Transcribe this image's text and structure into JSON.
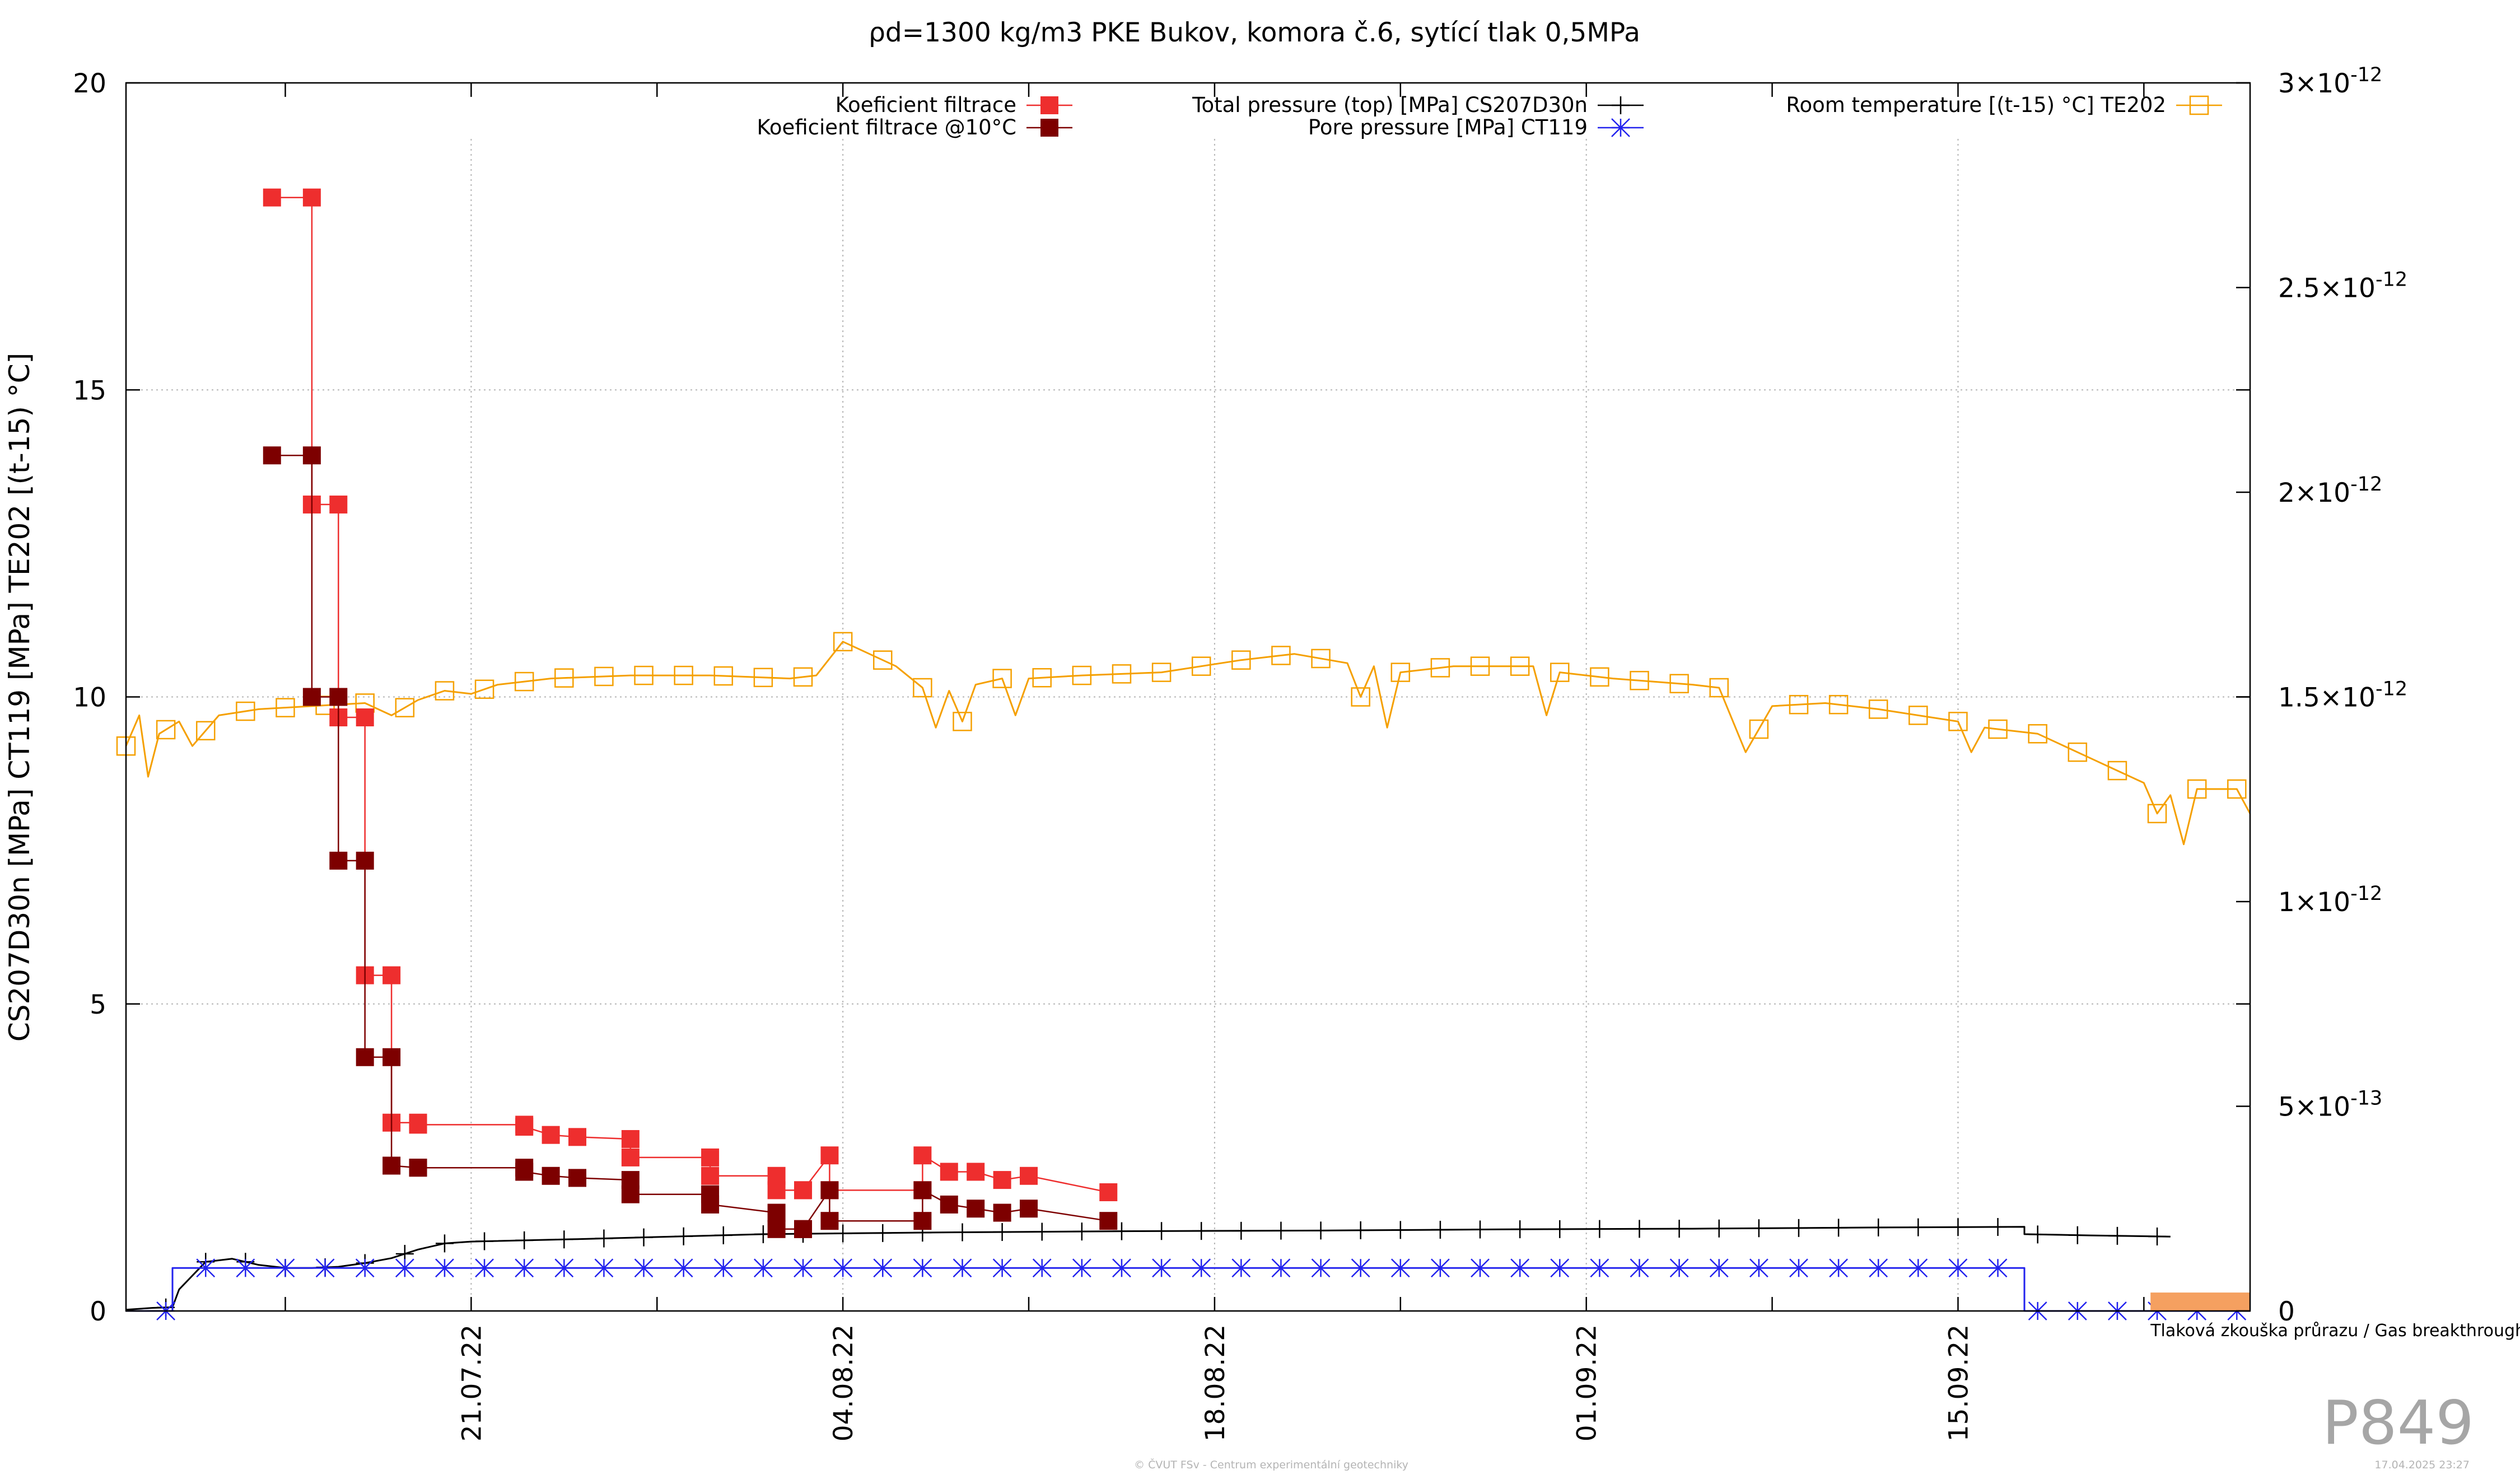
{
  "chart_data": {
    "type": "line",
    "title": "ρd=1300 kg/m3 PKE Bukov, komora č.6, sytící tlak 0,5MPa",
    "ylabel": "CS207D30n [MPa] CT119 [MPa] TE202 [(t-15) °C]",
    "ylim": [
      0,
      20
    ],
    "y_ticks": [
      "0",
      "5",
      "10",
      "15",
      "20"
    ],
    "y2lim": [
      0,
      3e-12
    ],
    "y2_ticks": [
      {
        "value": 0,
        "mant": "0",
        "exp": ""
      },
      {
        "value": 5e-13,
        "mant": "5×10",
        "exp": "-13"
      },
      {
        "value": 1e-12,
        "mant": "1×10",
        "exp": "-12"
      },
      {
        "value": 1.5e-12,
        "mant": "1.5×10",
        "exp": "-12"
      },
      {
        "value": 2e-12,
        "mant": "2×10",
        "exp": "-12"
      },
      {
        "value": 2.5e-12,
        "mant": "2.5×10",
        "exp": "-12"
      },
      {
        "value": 3e-12,
        "mant": "3×10",
        "exp": "-12"
      }
    ],
    "xlim": [
      "2022-07-08",
      "2022-09-26"
    ],
    "x_ticks": [
      "21.07.22",
      "04.08.22",
      "18.08.22",
      "01.09.22",
      "15.09.22"
    ],
    "x_tick_dates": [
      "2022-07-21",
      "2022-08-04",
      "2022-08-18",
      "2022-09-01",
      "2022-09-15"
    ],
    "grid": true,
    "legend_position": "top",
    "series": [
      {
        "name": "Koeficient filtrace",
        "axis": "y2",
        "color": "#ee2e2e",
        "marker": "filled-square",
        "points": [
          [
            "2022-07-13T12:00",
            2.72e-12
          ],
          [
            "2022-07-15T00:00",
            2.72e-12
          ],
          [
            "2022-07-15T00:00",
            1.97e-12
          ],
          [
            "2022-07-16T00:00",
            1.97e-12
          ],
          [
            "2022-07-16T00:00",
            1.45e-12
          ],
          [
            "2022-07-17T00:00",
            1.45e-12
          ],
          [
            "2022-07-17T00:00",
            8.2e-13
          ],
          [
            "2022-07-18T00:00",
            8.2e-13
          ],
          [
            "2022-07-18T00:00",
            4.6e-13
          ],
          [
            "2022-07-19T00:00",
            4.6e-13
          ],
          [
            "2022-07-19T00:00",
            4.55e-13
          ],
          [
            "2022-07-23T00:00",
            4.55e-13
          ],
          [
            "2022-07-23T00:00",
            4.5e-13
          ],
          [
            "2022-07-24T00:00",
            4.3e-13
          ],
          [
            "2022-07-25T00:00",
            4.25e-13
          ],
          [
            "2022-07-27T00:00",
            4.2e-13
          ],
          [
            "2022-07-27T00:00",
            3.75e-13
          ],
          [
            "2022-07-30T00:00",
            3.75e-13
          ],
          [
            "2022-07-30T00:00",
            3.3e-13
          ],
          [
            "2022-08-01T12:00",
            3.3e-13
          ],
          [
            "2022-08-01T12:00",
            2.95e-13
          ],
          [
            "2022-08-02T12:00",
            2.95e-13
          ],
          [
            "2022-08-02T12:00",
            2.95e-13
          ],
          [
            "2022-08-03T12:00",
            3.8e-13
          ],
          [
            "2022-08-03T12:00",
            2.95e-13
          ],
          [
            "2022-08-07T00:00",
            2.95e-13
          ],
          [
            "2022-08-07T00:00",
            3.8e-13
          ],
          [
            "2022-08-08T00:00",
            3.4e-13
          ],
          [
            "2022-08-09T00:00",
            3.4e-13
          ],
          [
            "2022-08-10T00:00",
            3.2e-13
          ],
          [
            "2022-08-11T00:00",
            3.3e-13
          ],
          [
            "2022-08-14T00:00",
            2.9e-13
          ]
        ]
      },
      {
        "name": "Koeficient filtrace @10°C",
        "axis": "y2",
        "color": "#7d0000",
        "marker": "filled-square",
        "points": [
          [
            "2022-07-13T12:00",
            2.09e-12
          ],
          [
            "2022-07-15T00:00",
            2.09e-12
          ],
          [
            "2022-07-15T00:00",
            1.5e-12
          ],
          [
            "2022-07-16T00:00",
            1.5e-12
          ],
          [
            "2022-07-16T00:00",
            1.1e-12
          ],
          [
            "2022-07-17T00:00",
            1.1e-12
          ],
          [
            "2022-07-17T00:00",
            6.2e-13
          ],
          [
            "2022-07-18T00:00",
            6.2e-13
          ],
          [
            "2022-07-18T00:00",
            3.55e-13
          ],
          [
            "2022-07-19T00:00",
            3.5e-13
          ],
          [
            "2022-07-19T00:00",
            3.5e-13
          ],
          [
            "2022-07-23T00:00",
            3.5e-13
          ],
          [
            "2022-07-23T00:00",
            3.4e-13
          ],
          [
            "2022-07-24T00:00",
            3.3e-13
          ],
          [
            "2022-07-25T00:00",
            3.25e-13
          ],
          [
            "2022-07-27T00:00",
            3.2e-13
          ],
          [
            "2022-07-27T00:00",
            2.85e-13
          ],
          [
            "2022-07-30T00:00",
            2.85e-13
          ],
          [
            "2022-07-30T00:00",
            2.6e-13
          ],
          [
            "2022-08-01T12:00",
            2.4e-13
          ],
          [
            "2022-08-01T12:00",
            2e-13
          ],
          [
            "2022-08-02T12:00",
            2e-13
          ],
          [
            "2022-08-02T12:00",
            2e-13
          ],
          [
            "2022-08-03T12:00",
            2.95e-13
          ],
          [
            "2022-08-03T12:00",
            2.2e-13
          ],
          [
            "2022-08-07T00:00",
            2.2e-13
          ],
          [
            "2022-08-07T00:00",
            2.95e-13
          ],
          [
            "2022-08-08T00:00",
            2.6e-13
          ],
          [
            "2022-08-09T00:00",
            2.5e-13
          ],
          [
            "2022-08-10T00:00",
            2.4e-13
          ],
          [
            "2022-08-11T00:00",
            2.5e-13
          ],
          [
            "2022-08-14T00:00",
            2.2e-13
          ]
        ]
      },
      {
        "name": "Total pressure (top) [MPa] CS207D30n",
        "axis": "y1",
        "color": "#000000",
        "marker": "plus",
        "points": [
          [
            "2022-07-08T00:00",
            0.02
          ],
          [
            "2022-07-09T00:00",
            0.05
          ],
          [
            "2022-07-09T18:00",
            0.06
          ],
          [
            "2022-07-10T00:00",
            0.35
          ],
          [
            "2022-07-11T00:00",
            0.8
          ],
          [
            "2022-07-12T00:00",
            0.85
          ],
          [
            "2022-07-13T00:00",
            0.75
          ],
          [
            "2022-07-14T00:00",
            0.7
          ],
          [
            "2022-07-15T00:00",
            0.7
          ],
          [
            "2022-07-16T00:00",
            0.72
          ],
          [
            "2022-07-17T00:00",
            0.78
          ],
          [
            "2022-07-18T00:00",
            0.86
          ],
          [
            "2022-07-19T00:00",
            1.0
          ],
          [
            "2022-07-20T00:00",
            1.1
          ],
          [
            "2022-07-21T00:00",
            1.13
          ],
          [
            "2022-07-25T00:00",
            1.17
          ],
          [
            "2022-08-01T00:00",
            1.25
          ],
          [
            "2022-08-08T00:00",
            1.28
          ],
          [
            "2022-08-15T00:00",
            1.3
          ],
          [
            "2022-08-22T00:00",
            1.31
          ],
          [
            "2022-08-29T00:00",
            1.33
          ],
          [
            "2022-09-05T00:00",
            1.34
          ],
          [
            "2022-09-12T00:00",
            1.36
          ],
          [
            "2022-09-17T12:00",
            1.37
          ],
          [
            "2022-09-17T12:00",
            1.25
          ],
          [
            "2022-09-20T00:00",
            1.23
          ],
          [
            "2022-09-23T00:00",
            1.21
          ]
        ]
      },
      {
        "name": "Pore pressure [MPa] CT119",
        "axis": "y1",
        "color": "#2222ee",
        "marker": "star",
        "points": [
          [
            "2022-07-08T00:00",
            0.0
          ],
          [
            "2022-07-09T18:00",
            0.0
          ],
          [
            "2022-07-09T18:00",
            0.7
          ],
          [
            "2022-09-17T12:00",
            0.7
          ],
          [
            "2022-09-17T12:00",
            0.0
          ],
          [
            "2022-09-26T00:00",
            0.0
          ]
        ]
      },
      {
        "name": "Room temperature [(t-15) °C] TE202",
        "axis": "y1",
        "color": "#f5a000",
        "marker": "open-square",
        "points": [
          [
            "2022-07-08T00:00",
            9.2
          ],
          [
            "2022-07-08T12:00",
            9.7
          ],
          [
            "2022-07-08T20:00",
            8.7
          ],
          [
            "2022-07-09T06:00",
            9.4
          ],
          [
            "2022-07-10T00:00",
            9.6
          ],
          [
            "2022-07-10T12:00",
            9.2
          ],
          [
            "2022-07-11T12:00",
            9.7
          ],
          [
            "2022-07-13T00:00",
            9.8
          ],
          [
            "2022-07-15T00:00",
            9.85
          ],
          [
            "2022-07-17T00:00",
            9.9
          ],
          [
            "2022-07-18T00:00",
            9.7
          ],
          [
            "2022-07-19T00:00",
            9.95
          ],
          [
            "2022-07-20T00:00",
            10.1
          ],
          [
            "2022-07-21T00:00",
            10.05
          ],
          [
            "2022-07-22T00:00",
            10.2
          ],
          [
            "2022-07-24T00:00",
            10.3
          ],
          [
            "2022-07-27T00:00",
            10.35
          ],
          [
            "2022-07-30T00:00",
            10.35
          ],
          [
            "2022-08-02T00:00",
            10.3
          ],
          [
            "2022-08-03T00:00",
            10.35
          ],
          [
            "2022-08-04T00:00",
            10.9
          ],
          [
            "2022-08-05T00:00",
            10.7
          ],
          [
            "2022-08-06T00:00",
            10.5
          ],
          [
            "2022-08-07T00:00",
            10.15
          ],
          [
            "2022-08-07T12:00",
            9.5
          ],
          [
            "2022-08-08T00:00",
            10.1
          ],
          [
            "2022-08-08T12:00",
            9.6
          ],
          [
            "2022-08-09T00:00",
            10.2
          ],
          [
            "2022-08-10T00:00",
            10.3
          ],
          [
            "2022-08-10T12:00",
            9.7
          ],
          [
            "2022-08-11T00:00",
            10.3
          ],
          [
            "2022-08-13T00:00",
            10.35
          ],
          [
            "2022-08-16T00:00",
            10.4
          ],
          [
            "2022-08-19T00:00",
            10.6
          ],
          [
            "2022-08-21T00:00",
            10.7
          ],
          [
            "2022-08-23T00:00",
            10.55
          ],
          [
            "2022-08-23T12:00",
            10.0
          ],
          [
            "2022-08-24T00:00",
            10.5
          ],
          [
            "2022-08-24T12:00",
            9.5
          ],
          [
            "2022-08-25T00:00",
            10.4
          ],
          [
            "2022-08-27T00:00",
            10.5
          ],
          [
            "2022-08-30T00:00",
            10.5
          ],
          [
            "2022-08-30T12:00",
            9.7
          ],
          [
            "2022-08-31T00:00",
            10.4
          ],
          [
            "2022-09-02T00:00",
            10.3
          ],
          [
            "2022-09-05T00:00",
            10.2
          ],
          [
            "2022-09-06T00:00",
            10.15
          ],
          [
            "2022-09-07T00:00",
            9.1
          ],
          [
            "2022-09-08T00:00",
            9.85
          ],
          [
            "2022-09-10T00:00",
            9.9
          ],
          [
            "2022-09-12T00:00",
            9.8
          ],
          [
            "2022-09-15T00:00",
            9.6
          ],
          [
            "2022-09-15T12:00",
            9.1
          ],
          [
            "2022-09-16T00:00",
            9.5
          ],
          [
            "2022-09-18T00:00",
            9.4
          ],
          [
            "2022-09-20T00:00",
            9.0
          ],
          [
            "2022-09-21T00:00",
            8.8
          ],
          [
            "2022-09-22T00:00",
            8.6
          ],
          [
            "2022-09-22T12:00",
            8.1
          ],
          [
            "2022-09-23T00:00",
            8.4
          ],
          [
            "2022-09-23T12:00",
            7.6
          ],
          [
            "2022-09-24T00:00",
            8.5
          ],
          [
            "2022-09-25T12:00",
            8.5
          ],
          [
            "2022-09-26T00:00",
            8.1
          ]
        ]
      },
      {
        "name": "Tlaková zkouška průrazu / Gas breakthrough",
        "axis": "y1",
        "color": "#f5a060",
        "marker": "filled-box",
        "points": [
          [
            "2022-09-22T06:00",
            0.0
          ],
          [
            "2022-09-26T00:00",
            0.3
          ]
        ]
      }
    ]
  },
  "page": {
    "watermark": "P849",
    "footer_left": "© ČVUT FSv - Centrum experimentální geotechniky",
    "footer_right": "17.04.2025 23:27"
  }
}
